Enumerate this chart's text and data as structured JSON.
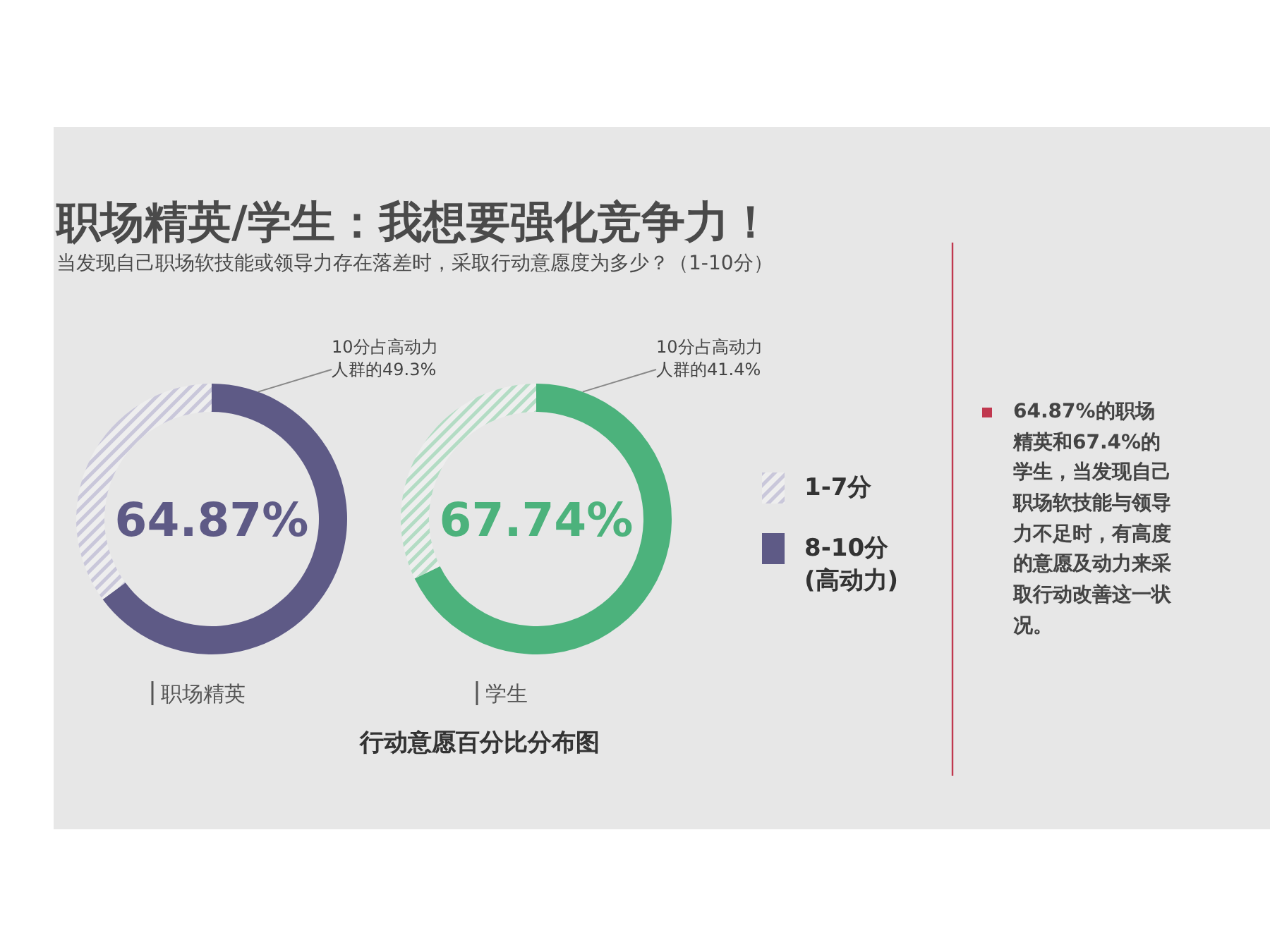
{
  "chart_data": [
    {
      "type": "donut",
      "title": "职场精英/学生：我想要强化竞争力！",
      "subtitle": "当发现自己职场软技能或领导力存在落差时，采取行动意愿度为多少？（1-10分）",
      "xlabel": "职场精英",
      "categories": [
        "1-7分",
        "8-10分 (高动力)"
      ],
      "values": [
        35.13,
        64.87
      ],
      "colors": [
        "#c9c7da",
        "#5e5a86"
      ],
      "value_labels": [
        null,
        "64.87%"
      ],
      "annotations": [
        "10分占高动力人群的49.3%"
      ],
      "legend": "right"
    },
    {
      "type": "donut",
      "xlabel": "学生",
      "categories": [
        null,
        null
      ],
      "values": [
        32.26,
        67.74
      ],
      "colors": [
        "#b3dcc4",
        "#4cb27c"
      ],
      "value_labels": [
        null,
        "67.74%"
      ],
      "annotations": [
        "10分占高动力人群的41.4%",
        "行动意愿百分比分布图"
      ]
    },
    {
      "type": "other",
      "annotations": [
        "64.87%的职场精英和67.4%的学生，当发现自己职场软技能与领导力不足时，有高度的意愿及动力来采取行动改善这一状况。"
      ]
    }
  ]
}
